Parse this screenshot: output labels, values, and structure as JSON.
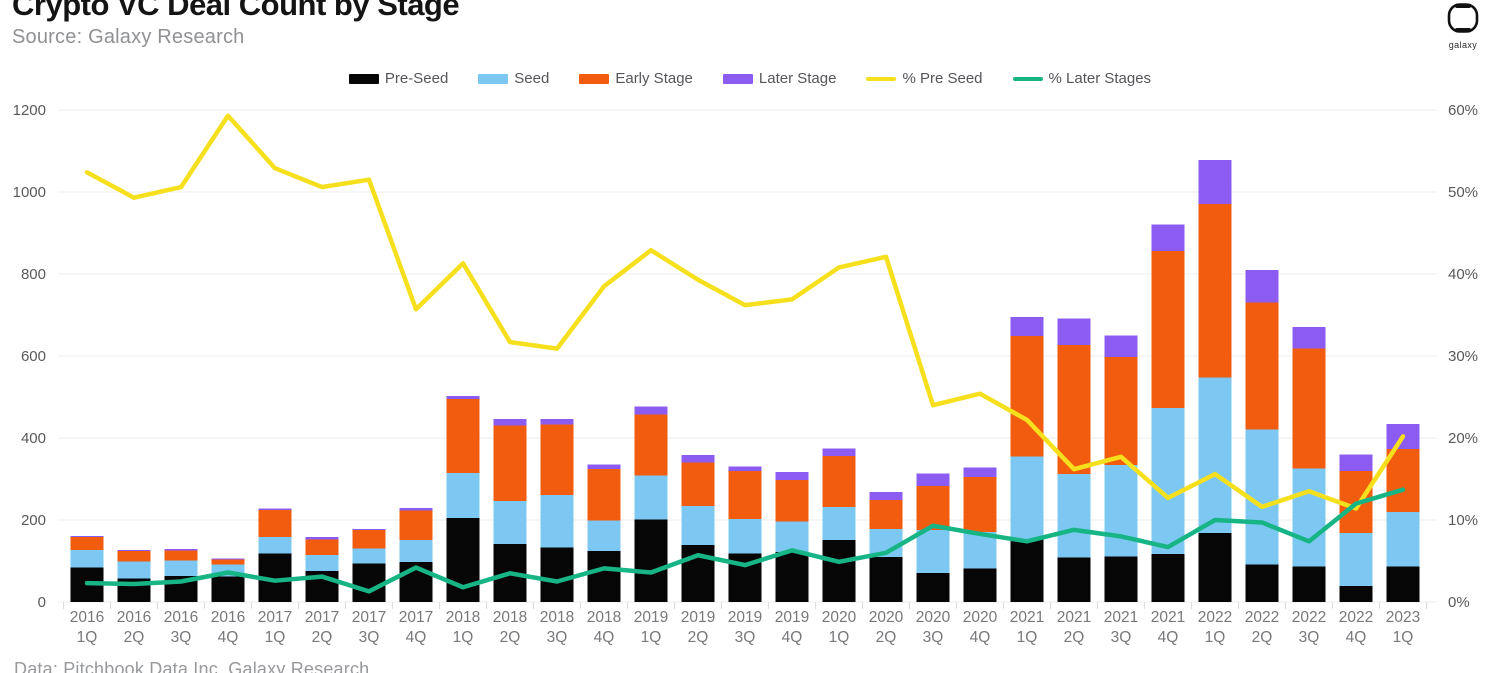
{
  "header": {
    "title": "Crypto VC Deal Count by Stage",
    "source": "Source: Galaxy Research",
    "logo_text": "galaxy"
  },
  "footer": {
    "credit": "Data: Pitchbook Data Inc, Galaxy Research"
  },
  "colors": {
    "pre_seed": "#060606",
    "seed": "#7dc8f2",
    "early_stage": "#f25c0e",
    "later_stage": "#8c5cf2",
    "pct_pre_seed": "#f6e01e",
    "pct_later_stages": "#17b585",
    "gridline": "#ececec",
    "axis_text": "#58595b",
    "x_label_text": "#77787b",
    "boundary_tick": "#dcdcdc"
  },
  "chart_data": {
    "type": "combo: stacked bar + line",
    "legend_position": "top",
    "grid": "horizontal only",
    "categories": [
      "2016 1Q",
      "2016 2Q",
      "2016 3Q",
      "2016 4Q",
      "2017 1Q",
      "2017 2Q",
      "2017 3Q",
      "2017 4Q",
      "2018 1Q",
      "2018 2Q",
      "2018 3Q",
      "2018 4Q",
      "2019 1Q",
      "2019 2Q",
      "2019 3Q",
      "2019 4Q",
      "2020 1Q",
      "2020 2Q",
      "2020 3Q",
      "2020 4Q",
      "2021 1Q",
      "2021 2Q",
      "2021 3Q",
      "2021 4Q",
      "2022 1Q",
      "2022 2Q",
      "2022 3Q",
      "2022 4Q",
      "2023 1Q"
    ],
    "left_axis": {
      "min": 0,
      "max": 1200,
      "ticks": [
        0,
        200,
        400,
        600,
        800,
        1000,
        1200
      ]
    },
    "right_axis": {
      "min": 0,
      "max": 60,
      "tick_labels": [
        "0%",
        "10%",
        "20%",
        "30%",
        "40%",
        "50%",
        "60%"
      ]
    },
    "series": [
      {
        "name": "Pre-Seed",
        "type": "bar",
        "axis": "left",
        "color": "#060606",
        "values": [
          84,
          57,
          64,
          62,
          118,
          76,
          94,
          97,
          205,
          141,
          133,
          124,
          201,
          139,
          118,
          122,
          151,
          110,
          71,
          82,
          153,
          108,
          111,
          117,
          168,
          92,
          86,
          39,
          86
        ]
      },
      {
        "name": "Seed",
        "type": "bar",
        "axis": "left",
        "color": "#7dc8f2",
        "values": [
          43,
          42,
          37,
          29,
          40,
          39,
          37,
          54,
          110,
          105,
          128,
          75,
          107,
          95,
          85,
          74,
          81,
          68,
          105,
          89,
          202,
          204,
          223,
          356,
          380,
          329,
          240,
          129,
          134
        ]
      },
      {
        "name": "Early Stage",
        "type": "bar",
        "axis": "left",
        "color": "#f25c0e",
        "values": [
          32,
          25,
          25,
          13,
          67,
          38,
          45,
          72,
          180,
          185,
          172,
          126,
          149,
          106,
          117,
          102,
          124,
          71,
          107,
          134,
          294,
          315,
          263,
          383,
          423,
          309,
          292,
          152,
          153
        ]
      },
      {
        "name": "Later Stage",
        "type": "bar",
        "axis": "left",
        "color": "#8c5cf2",
        "values": [
          2,
          3,
          3,
          2,
          3,
          5,
          2,
          6,
          7,
          15,
          13,
          10,
          20,
          19,
          11,
          19,
          19,
          19,
          30,
          23,
          46,
          65,
          53,
          65,
          107,
          80,
          53,
          40,
          61
        ]
      },
      {
        "name": "% Pre Seed",
        "type": "line",
        "axis": "right",
        "color": "#f6e01e",
        "values": [
          52.4,
          49.3,
          50.6,
          59.3,
          52.9,
          50.6,
          51.5,
          35.7,
          41.3,
          31.7,
          30.9,
          38.5,
          42.9,
          39.3,
          36.2,
          36.9,
          40.8,
          42.1,
          24.0,
          25.4,
          22.2,
          16.2,
          17.7,
          12.7,
          15.6,
          11.6,
          13.5,
          11.4,
          20.2
        ]
      },
      {
        "name": "% Later Stages",
        "type": "line",
        "axis": "right",
        "color": "#17b585",
        "values": [
          2.3,
          2.2,
          2.5,
          3.6,
          2.6,
          3.1,
          1.3,
          4.2,
          1.8,
          3.5,
          2.5,
          4.1,
          3.6,
          5.7,
          4.5,
          6.3,
          4.9,
          6.0,
          9.3,
          8.3,
          7.4,
          8.8,
          8.0,
          6.7,
          10.0,
          9.7,
          7.4,
          12.0,
          13.7
        ]
      }
    ]
  }
}
